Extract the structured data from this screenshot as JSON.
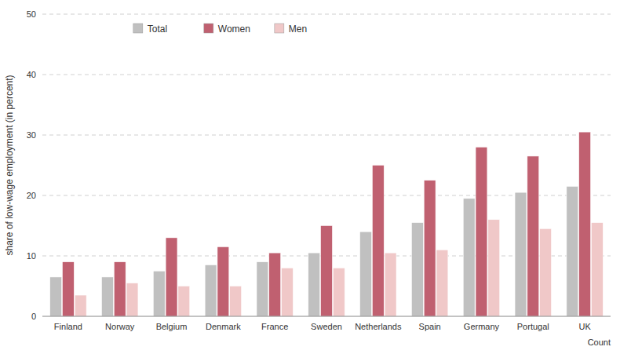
{
  "chart_data": {
    "type": "bar",
    "categories": [
      "Finland",
      "Norway",
      "Belgium",
      "Denmark",
      "France",
      "Sweden",
      "Netherlands",
      "Spain",
      "Germany",
      "Portugal",
      "UK"
    ],
    "series": [
      {
        "name": "Total",
        "color": "#c0c0c0",
        "values": [
          6.5,
          6.5,
          7.5,
          8.5,
          9.0,
          10.5,
          14.0,
          15.5,
          19.5,
          20.5,
          21.5
        ]
      },
      {
        "name": "Women",
        "color": "#c06070",
        "values": [
          9.0,
          9.0,
          13.0,
          11.5,
          10.5,
          15.0,
          25.0,
          22.5,
          28.0,
          26.5,
          30.5
        ]
      },
      {
        "name": "Men",
        "color": "#f0c8c8",
        "values": [
          3.5,
          5.5,
          5.0,
          5.0,
          8.0,
          8.0,
          10.5,
          11.0,
          16.0,
          14.5,
          15.5
        ]
      }
    ],
    "ylabel": "share of low-wage employment (in percent)",
    "xlabel": "Count",
    "ylim": [
      0,
      50
    ],
    "yticks": [
      0,
      10,
      20,
      30,
      40,
      50
    ],
    "grid": true,
    "legend": "upper left"
  }
}
